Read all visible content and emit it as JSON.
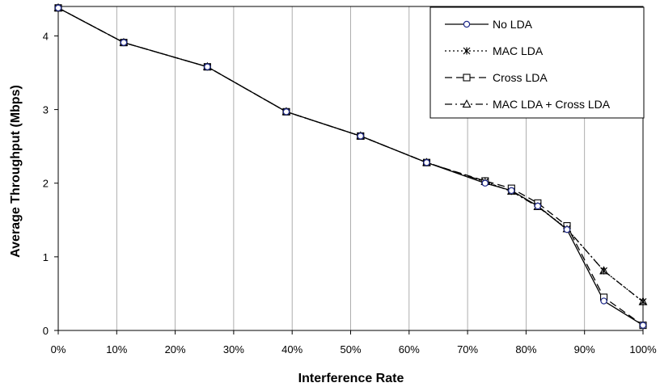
{
  "chart_data": {
    "type": "line",
    "title": "",
    "xlabel": "Interference Rate",
    "ylabel": "Average Throughput (Mbps)",
    "xlim": [
      0,
      100
    ],
    "ylim": [
      0,
      4.4
    ],
    "x_ticks": [
      0,
      10,
      20,
      30,
      40,
      50,
      60,
      70,
      80,
      90,
      100
    ],
    "x_tick_labels": [
      "0%",
      "10%",
      "20%",
      "30%",
      "40%",
      "50%",
      "60%",
      "70%",
      "80%",
      "90%",
      "100%"
    ],
    "y_ticks": [
      0,
      1,
      2,
      3,
      4
    ],
    "y_tick_labels": [
      "0",
      "1",
      "2",
      "3",
      "4"
    ],
    "grid": "vertical",
    "legend_position": "top-right",
    "series": [
      {
        "name": "No LDA",
        "marker": "circle",
        "line_style": "solid",
        "color": "#000000",
        "marker_color": "#1f2a8a",
        "x": [
          0,
          11.2,
          25.5,
          39,
          51.7,
          63,
          73,
          77.5,
          82,
          87,
          93.3,
          100
        ],
        "y": [
          4.38,
          3.91,
          3.58,
          2.97,
          2.64,
          2.28,
          2.0,
          1.9,
          1.69,
          1.37,
          0.4,
          0.07
        ]
      },
      {
        "name": "MAC LDA",
        "marker": "asterisk",
        "line_style": "dotted",
        "color": "#000000",
        "x": [
          0,
          11.2,
          25.5,
          39,
          51.7,
          63,
          73,
          77.5,
          82,
          87,
          93.3,
          100
        ],
        "y": [
          4.38,
          3.91,
          3.58,
          2.97,
          2.64,
          2.28,
          2.02,
          1.89,
          1.69,
          1.38,
          0.81,
          0.39
        ]
      },
      {
        "name": "Cross LDA",
        "marker": "square",
        "line_style": "dashed",
        "color": "#000000",
        "x": [
          0,
          11.2,
          25.5,
          39,
          51.7,
          63,
          73,
          77.5,
          82,
          87,
          93.3,
          100
        ],
        "y": [
          4.38,
          3.91,
          3.58,
          2.97,
          2.64,
          2.28,
          2.03,
          1.93,
          1.73,
          1.42,
          0.45,
          0.07
        ]
      },
      {
        "name": "MAC LDA + Cross LDA",
        "marker": "triangle",
        "line_style": "dash-dot",
        "color": "#000000",
        "x": [
          0,
          11.2,
          25.5,
          39,
          51.7,
          63,
          73,
          77.5,
          82,
          87,
          93.3,
          100
        ],
        "y": [
          4.38,
          3.91,
          3.58,
          2.97,
          2.64,
          2.28,
          2.02,
          1.89,
          1.68,
          1.38,
          0.81,
          0.39
        ]
      }
    ]
  }
}
